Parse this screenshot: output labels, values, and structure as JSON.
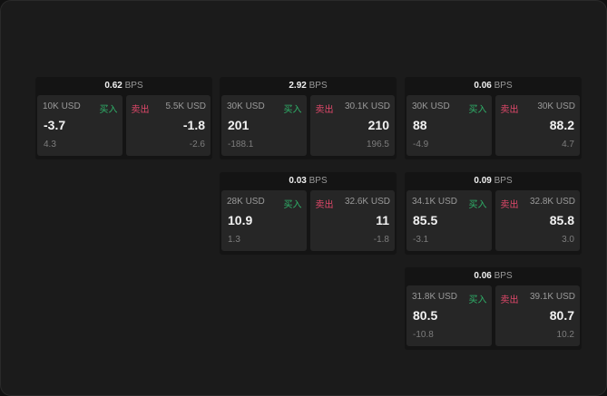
{
  "labels": {
    "buy": "买入",
    "sell": "卖出",
    "unit": "BPS"
  },
  "colors": {
    "buy": "#2fb36a",
    "sell": "#e0486a"
  },
  "cards": [
    {
      "spread": "0.62",
      "buy": {
        "size": "10K USD",
        "price": "-3.7",
        "delta": "4.3"
      },
      "sell": {
        "size": "5.5K USD",
        "price": "-1.8",
        "delta": "-2.6"
      }
    },
    {
      "spread": "2.92",
      "buy": {
        "size": "30K USD",
        "price": "201",
        "delta": "-188.1"
      },
      "sell": {
        "size": "30.1K USD",
        "price": "210",
        "delta": "196.5"
      }
    },
    {
      "spread": "0.06",
      "buy": {
        "size": "30K USD",
        "price": "88",
        "delta": "-4.9"
      },
      "sell": {
        "size": "30K USD",
        "price": "88.2",
        "delta": "4.7"
      }
    },
    {
      "spread": "0.03",
      "buy": {
        "size": "28K USD",
        "price": "10.9",
        "delta": "1.3"
      },
      "sell": {
        "size": "32.6K USD",
        "price": "11",
        "delta": "-1.8"
      }
    },
    {
      "spread": "0.09",
      "buy": {
        "size": "34.1K USD",
        "price": "85.5",
        "delta": "-3.1"
      },
      "sell": {
        "size": "32.8K USD",
        "price": "85.8",
        "delta": "3.0"
      }
    },
    {
      "spread": "0.06",
      "buy": {
        "size": "31.8K USD",
        "price": "80.5",
        "delta": "-10.8"
      },
      "sell": {
        "size": "39.1K USD",
        "price": "80.7",
        "delta": "10.2"
      }
    }
  ]
}
